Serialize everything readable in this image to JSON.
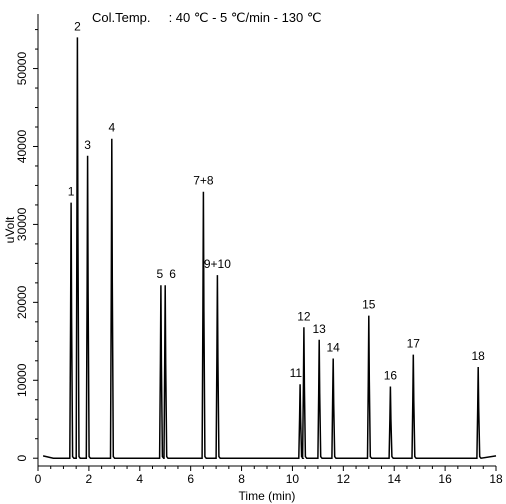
{
  "chart_data": {
    "type": "line",
    "title": "Col.Temp.     : 40 ℃ - 5 ℃/min - 130 ℃",
    "xlabel": "Time (min)",
    "ylabel": "uVolt",
    "xlim": [
      0,
      18
    ],
    "ylim": [
      -1000,
      57000
    ],
    "x_ticks": [
      0,
      2,
      4,
      6,
      8,
      10,
      12,
      14,
      16,
      18
    ],
    "y_ticks": [
      0,
      10000,
      20000,
      30000,
      40000,
      50000
    ],
    "grid": false,
    "baseline": 0,
    "peaks": [
      {
        "label": "1",
        "x": 1.3,
        "y": 32800
      },
      {
        "label": "2",
        "x": 1.55,
        "y": 54000
      },
      {
        "label": "3",
        "x": 1.95,
        "y": 38800
      },
      {
        "label": "4",
        "x": 2.9,
        "y": 41000
      },
      {
        "label": "5",
        "x": 4.83,
        "y": 22200
      },
      {
        "label": "6",
        "x": 5.0,
        "y": 22200
      },
      {
        "label": "7+8",
        "x": 6.5,
        "y": 34200
      },
      {
        "label": "9+10",
        "x": 7.05,
        "y": 23500
      },
      {
        "label": "11",
        "x": 10.3,
        "y": 9500
      },
      {
        "label": "12",
        "x": 10.45,
        "y": 16800
      },
      {
        "label": "13",
        "x": 11.05,
        "y": 15200
      },
      {
        "label": "14",
        "x": 11.6,
        "y": 12800
      },
      {
        "label": "15",
        "x": 13.0,
        "y": 18300
      },
      {
        "label": "16",
        "x": 13.85,
        "y": 9200
      },
      {
        "label": "17",
        "x": 14.75,
        "y": 13300
      },
      {
        "label": "18",
        "x": 17.3,
        "y": 11700
      }
    ]
  }
}
